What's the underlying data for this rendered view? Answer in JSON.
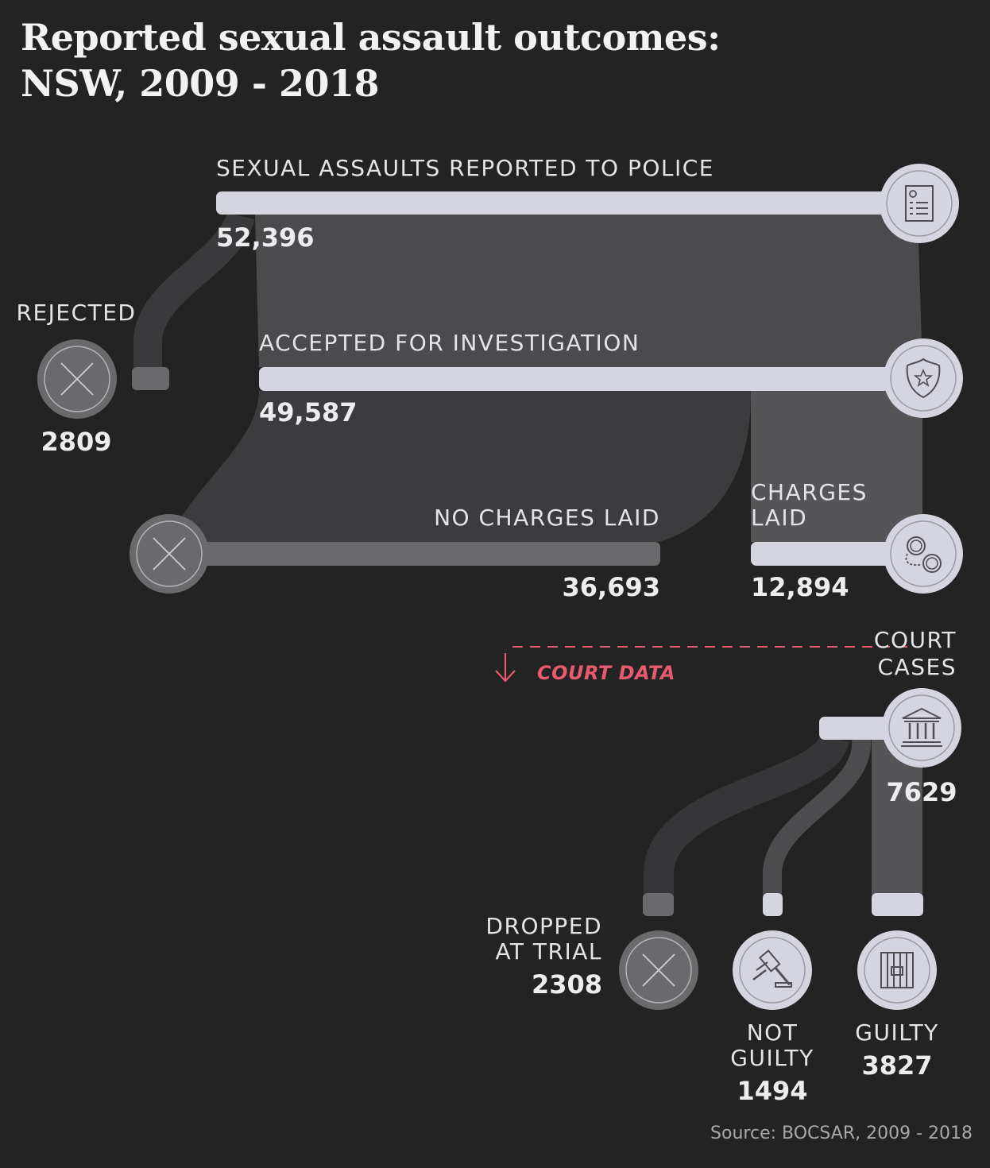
{
  "title_line1": "Reported sexual assault outcomes:",
  "title_line2": "NSW, 2009 - 2018",
  "stages": {
    "reported": {
      "label": "SEXUAL ASSAULTS REPORTED TO POLICE",
      "value": "52,396",
      "icon": "police-report-icon"
    },
    "rejected": {
      "label": "REJECTED",
      "value": "2809",
      "icon": "cross-icon"
    },
    "accepted": {
      "label": "ACCEPTED FOR INVESTIGATION",
      "value": "49,587",
      "icon": "police-badge-icon"
    },
    "no_charges": {
      "label": "NO CHARGES LAID",
      "value": "36,693",
      "icon": "cross-icon"
    },
    "charges": {
      "label_line1": "CHARGES",
      "label_line2": "LAID",
      "value": "12,894",
      "icon": "handcuffs-icon"
    },
    "court": {
      "label_line1": "COURT",
      "label_line2": "CASES",
      "value": "7629",
      "icon": "courthouse-icon"
    },
    "dropped": {
      "label_line1": "DROPPED",
      "label_line2": "AT TRIAL",
      "value": "2308",
      "icon": "cross-icon"
    },
    "not_guilty": {
      "label_line1": "NOT",
      "label_line2": "GUILTY",
      "value": "1494",
      "icon": "gavel-icon"
    },
    "guilty": {
      "label": "GUILTY",
      "value": "3827",
      "icon": "prison-bars-icon"
    }
  },
  "court_data_note": "COURT DATA",
  "source": "Source: BOCSAR, 2009 - 2018",
  "colors": {
    "background": "#232323",
    "bar_light": "#d4d5de",
    "bar_dark": "#6a6a6c",
    "flow_fill": "#4b4b4e",
    "flow_dark": "#3b3b3d",
    "accent": "#e85a6e"
  }
}
